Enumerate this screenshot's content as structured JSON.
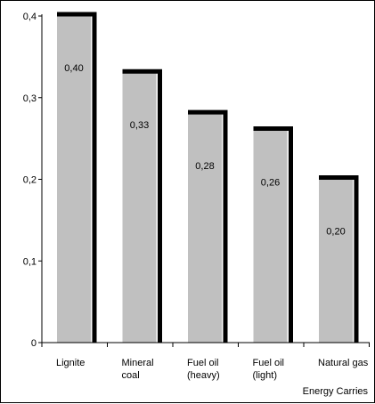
{
  "chart_data": {
    "type": "bar",
    "categories": [
      [
        "Lignite"
      ],
      [
        "Mineral",
        "coal"
      ],
      [
        "Fuel oil",
        "(heavy)"
      ],
      [
        "Fuel oil",
        "(light)"
      ],
      [
        "Natural gas"
      ]
    ],
    "values": [
      0.4,
      0.33,
      0.28,
      0.26,
      0.2
    ],
    "data_labels": [
      "0,40",
      "0,33",
      "0,28",
      "0,26",
      "0,20"
    ],
    "yticks": [
      0,
      0.1,
      0.2,
      0.3,
      0.4
    ],
    "ytick_labels": [
      "0",
      "0,1",
      "0,2",
      "0,3",
      "0,4"
    ],
    "xlabel": "Energy Carries",
    "ylabel": "",
    "ylim": [
      0,
      0.4
    ],
    "grid": false,
    "legend": "none",
    "colors": {
      "bar_fill": "#c0c0c0",
      "bar_edge": "#000000",
      "axis": "#000000"
    }
  }
}
